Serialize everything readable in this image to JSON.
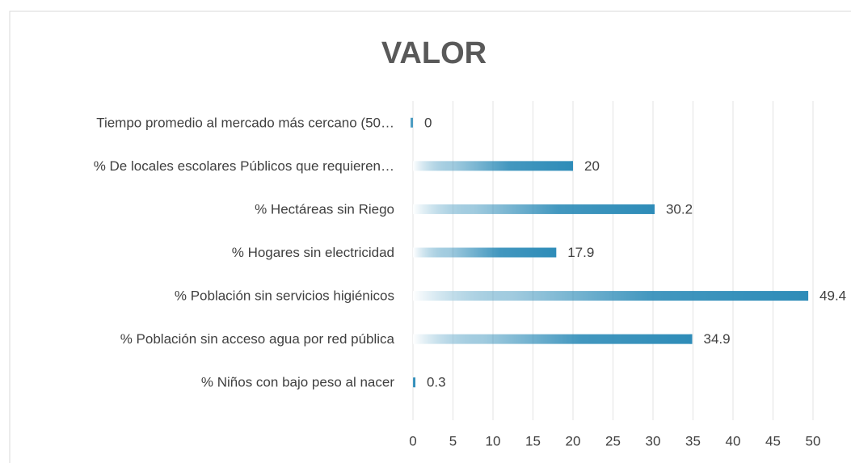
{
  "chart_data": {
    "type": "bar",
    "orientation": "horizontal",
    "title": "VALOR",
    "categories": [
      "Tiempo promedio al mercado más cercano (50…",
      "% De locales escolares Públicos que requieren…",
      "% Hectáreas sin Riego",
      "% Hogares sin electricidad",
      "% Población sin servicios higiénicos",
      "% Población sin acceso agua por red pública",
      "% Niños con bajo peso al nacer"
    ],
    "values": [
      0,
      20,
      30.2,
      17.9,
      49.4,
      34.9,
      0.3
    ],
    "color": "#2e8cb8",
    "xlim": [
      0,
      50
    ],
    "xticks": [
      0,
      5,
      10,
      15,
      20,
      25,
      30,
      35,
      40,
      45,
      50
    ],
    "grid": true
  }
}
